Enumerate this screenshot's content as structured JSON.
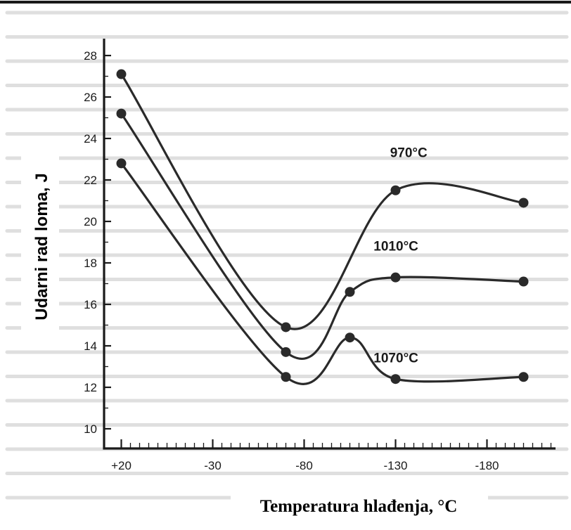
{
  "chart_data": {
    "type": "line",
    "title": "",
    "xlabel": "Temperatura hlađenja, °C",
    "ylabel": "Udarni rad loma, J",
    "x_ticks": [
      "+20",
      "-30",
      "-80",
      "-130",
      "-180"
    ],
    "y_ticks": [
      "10",
      "12",
      "14",
      "16",
      "18",
      "20",
      "22",
      "24",
      "26",
      "28"
    ],
    "x": [
      20,
      -70,
      -105,
      -130,
      -200
    ],
    "ylim": [
      10,
      28
    ],
    "xlim": [
      20,
      -200
    ],
    "grid": false,
    "legend": "none",
    "series": [
      {
        "name": "970°C",
        "values": [
          27.1,
          14.9,
          null,
          21.5,
          20.9
        ]
      },
      {
        "name": "1010°C",
        "values": [
          25.2,
          13.7,
          16.6,
          17.3,
          17.1
        ]
      },
      {
        "name": "1070°C",
        "values": [
          22.8,
          12.5,
          14.4,
          12.4,
          12.5
        ]
      }
    ]
  }
}
